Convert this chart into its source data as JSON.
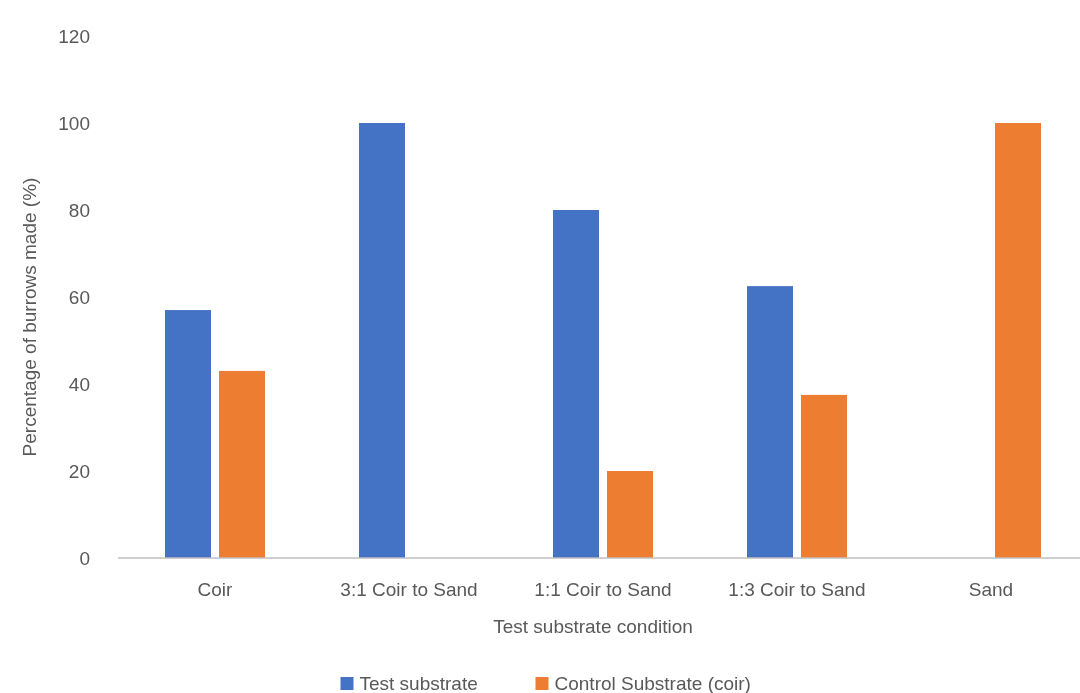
{
  "chart_data": {
    "type": "bar",
    "xlabel": "Test substrate condition",
    "ylabel": "Percentage of burrows made (%)",
    "categories": [
      "Coir",
      "3:1 Coir to Sand",
      "1:1 Coir to Sand",
      "1:3 Coir to Sand",
      "Sand"
    ],
    "series": [
      {
        "name": "Test substrate",
        "color": "#4472c4",
        "values": [
          57,
          100,
          80,
          62.5,
          0
        ]
      },
      {
        "name": "Control Substrate (coir)",
        "color": "#ed7d31",
        "values": [
          43,
          0,
          20,
          37.5,
          100
        ]
      }
    ],
    "ylim": [
      0,
      120
    ],
    "yticks": [
      0,
      20,
      40,
      60,
      80,
      100,
      120
    ],
    "grid": false,
    "legend": "bottom"
  }
}
